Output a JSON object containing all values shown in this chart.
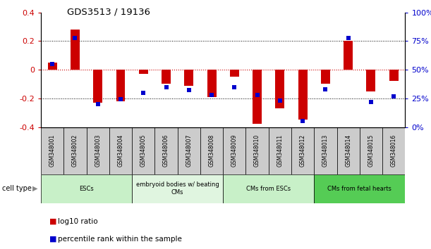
{
  "title": "GDS3513 / 19136",
  "samples": [
    "GSM348001",
    "GSM348002",
    "GSM348003",
    "GSM348004",
    "GSM348005",
    "GSM348006",
    "GSM348007",
    "GSM348008",
    "GSM348009",
    "GSM348010",
    "GSM348011",
    "GSM348012",
    "GSM348013",
    "GSM348014",
    "GSM348015",
    "GSM348016"
  ],
  "log10_ratio": [
    0.05,
    0.28,
    -0.23,
    -0.22,
    -0.03,
    -0.1,
    -0.11,
    -0.19,
    -0.05,
    -0.38,
    -0.27,
    -0.35,
    -0.1,
    0.2,
    -0.15,
    -0.08
  ],
  "percentile_rank": [
    55,
    78,
    20,
    24,
    30,
    35,
    32,
    28,
    35,
    28,
    23,
    5,
    33,
    78,
    22,
    27
  ],
  "cell_types": [
    {
      "label": "ESCs",
      "start": 0,
      "end": 3,
      "color": "#c8f0c8"
    },
    {
      "label": "embryoid bodies w/ beating\nCMs",
      "start": 4,
      "end": 7,
      "color": "#e0f5e0"
    },
    {
      "label": "CMs from ESCs",
      "start": 8,
      "end": 11,
      "color": "#c8f0c8"
    },
    {
      "label": "CMs from fetal hearts",
      "start": 12,
      "end": 15,
      "color": "#55cc55"
    }
  ],
  "ylim_left": [
    -0.4,
    0.4
  ],
  "ylim_right": [
    0,
    100
  ],
  "yticks_left": [
    -0.4,
    -0.2,
    0.0,
    0.2,
    0.4
  ],
  "yticks_right": [
    0,
    25,
    50,
    75,
    100
  ],
  "bar_color_red": "#cc0000",
  "bar_color_blue": "#0000cc",
  "zero_line_color": "#cc0000",
  "background_color": "#ffffff",
  "gsm_bg_color": "#cccccc",
  "bar_width": 0.4
}
